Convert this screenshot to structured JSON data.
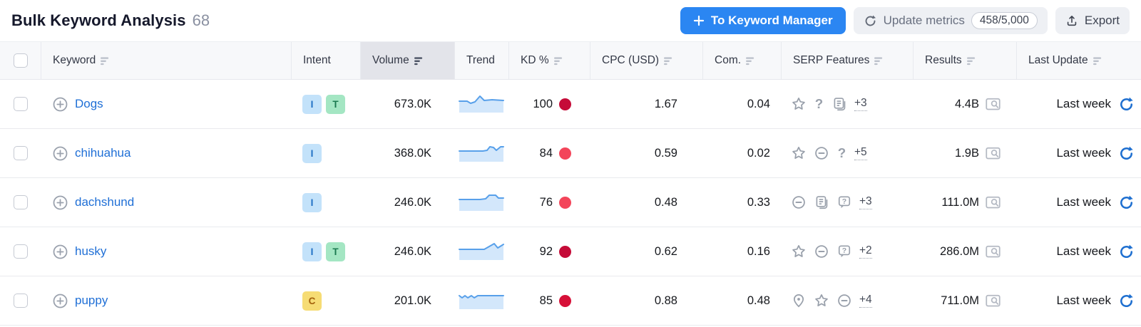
{
  "title": {
    "text": "Bulk Keyword Analysis",
    "count": "68"
  },
  "toolbar": {
    "keyword_manager_label": "To Keyword Manager",
    "update_metrics_label": "Update metrics",
    "quota": "458/5,000",
    "export_label": "Export"
  },
  "colors": {
    "primary_button": "#2b86f2",
    "link_blue": "#1f6fd6",
    "refresh_blue": "#1e6fd0",
    "sparkline_line": "#58a0ea",
    "sparkline_fill": "#d3e7fb",
    "kd_very_hard": "#c50b38",
    "kd_hard": "#f3455a"
  },
  "table": {
    "columns": [
      {
        "key": "check",
        "label": "",
        "sortable": false,
        "active": false
      },
      {
        "key": "keyword",
        "label": "Keyword",
        "sortable": true,
        "active": false
      },
      {
        "key": "intent",
        "label": "Intent",
        "sortable": false,
        "active": false
      },
      {
        "key": "volume",
        "label": "Volume",
        "sortable": true,
        "active": true
      },
      {
        "key": "trend",
        "label": "Trend",
        "sortable": false,
        "active": false
      },
      {
        "key": "kd",
        "label": "KD %",
        "sortable": true,
        "active": false
      },
      {
        "key": "cpc",
        "label": "CPC (USD)",
        "sortable": true,
        "active": false
      },
      {
        "key": "com",
        "label": "Com.",
        "sortable": true,
        "active": false
      },
      {
        "key": "serp",
        "label": "SERP Features",
        "sortable": true,
        "active": false
      },
      {
        "key": "results",
        "label": "Results",
        "sortable": true,
        "active": false
      },
      {
        "key": "updated",
        "label": "Last Update",
        "sortable": true,
        "active": false
      }
    ],
    "rows": [
      {
        "keyword": "Dogs",
        "intents": [
          {
            "label": "I",
            "bg": "#c3e2fa",
            "fg": "#1f6fc4"
          },
          {
            "label": "T",
            "bg": "#a4e6c3",
            "fg": "#1b7a50"
          }
        ],
        "volume": "673.0K",
        "trend": [
          [
            1,
            11
          ],
          [
            12,
            11
          ],
          [
            17,
            14
          ],
          [
            23,
            12
          ],
          [
            30,
            4
          ],
          [
            36,
            10
          ],
          [
            47,
            9
          ],
          [
            63,
            10
          ]
        ],
        "kd": "100",
        "kd_color": "#c50b38",
        "cpc": "1.67",
        "com": "0.04",
        "serp_icons": [
          "star",
          "question",
          "snippet"
        ],
        "serp_more": "+3",
        "results": "4.4B",
        "last_update": "Last week"
      },
      {
        "keyword": "chihuahua",
        "intents": [
          {
            "label": "I",
            "bg": "#c3e2fa",
            "fg": "#1f6fc4"
          }
        ],
        "volume": "368.0K",
        "trend": [
          [
            1,
            12
          ],
          [
            34,
            12
          ],
          [
            40,
            11
          ],
          [
            44,
            6
          ],
          [
            49,
            7
          ],
          [
            53,
            11
          ],
          [
            59,
            6
          ],
          [
            63,
            6
          ]
        ],
        "kd": "84",
        "kd_color": "#f3455a",
        "cpc": "0.59",
        "com": "0.02",
        "serp_icons": [
          "star",
          "link",
          "question"
        ],
        "serp_more": "+5",
        "results": "1.9B",
        "last_update": "Last week"
      },
      {
        "keyword": "dachshund",
        "intents": [
          {
            "label": "I",
            "bg": "#c3e2fa",
            "fg": "#1f6fc4"
          }
        ],
        "volume": "246.0K",
        "trend": [
          [
            1,
            11
          ],
          [
            30,
            11
          ],
          [
            38,
            10
          ],
          [
            43,
            5
          ],
          [
            52,
            5
          ],
          [
            56,
            9
          ],
          [
            63,
            9
          ]
        ],
        "kd": "76",
        "kd_color": "#f3455a",
        "cpc": "0.48",
        "com": "0.33",
        "serp_icons": [
          "link",
          "snippet",
          "chat-question"
        ],
        "serp_more": "+3",
        "results": "111.0M",
        "last_update": "Last week"
      },
      {
        "keyword": "husky",
        "intents": [
          {
            "label": "I",
            "bg": "#c3e2fa",
            "fg": "#1f6fc4"
          },
          {
            "label": "T",
            "bg": "#a4e6c3",
            "fg": "#1b7a50"
          }
        ],
        "volume": "246.0K",
        "trend": [
          [
            1,
            12
          ],
          [
            36,
            12
          ],
          [
            50,
            4
          ],
          [
            55,
            10
          ],
          [
            63,
            5
          ]
        ],
        "kd": "92",
        "kd_color": "#c50b38",
        "cpc": "0.62",
        "com": "0.16",
        "serp_icons": [
          "star",
          "link",
          "chat-question"
        ],
        "serp_more": "+2",
        "results": "286.0M",
        "last_update": "Last week"
      },
      {
        "keyword": "puppy",
        "intents": [
          {
            "label": "C",
            "bg": "#f6dc74",
            "fg": "#a3610c"
          }
        ],
        "volume": "201.0K",
        "trend": [
          [
            1,
            8
          ],
          [
            5,
            11
          ],
          [
            9,
            8
          ],
          [
            13,
            11
          ],
          [
            18,
            8
          ],
          [
            22,
            11
          ],
          [
            27,
            8
          ],
          [
            32,
            8
          ],
          [
            63,
            8
          ]
        ],
        "kd": "85",
        "kd_color": "#d61038",
        "cpc": "0.88",
        "com": "0.48",
        "serp_icons": [
          "location",
          "star",
          "link"
        ],
        "serp_more": "+4",
        "results": "711.0M",
        "last_update": "Last week"
      }
    ]
  }
}
